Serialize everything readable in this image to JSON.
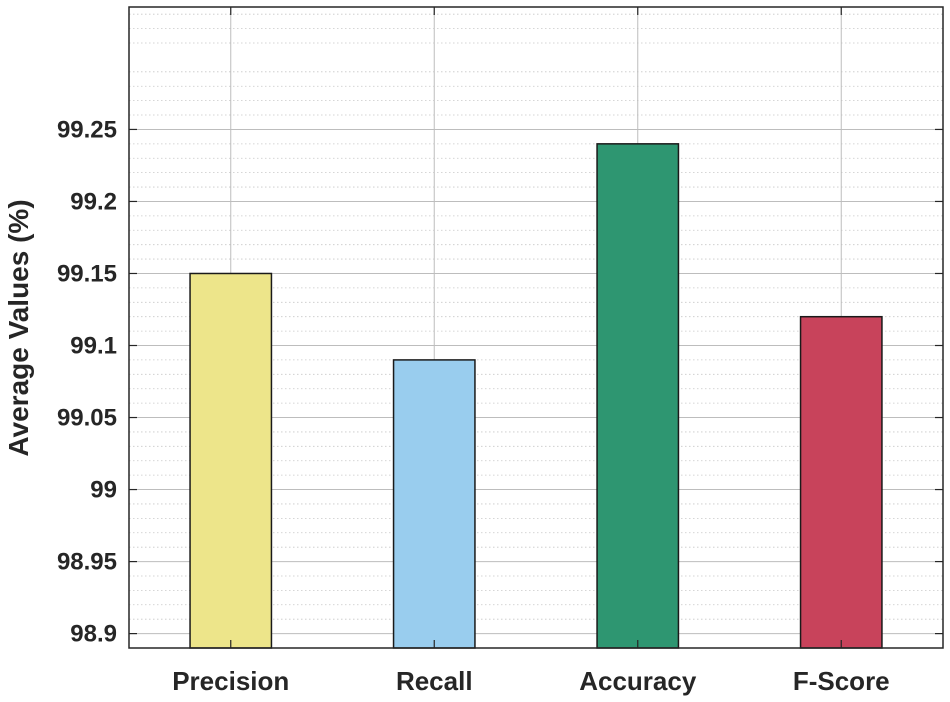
{
  "chart_data": {
    "type": "bar",
    "title": "",
    "xlabel": "",
    "ylabel": "Average Values (%)",
    "categories": [
      "Precision",
      "Recall",
      "Accuracy",
      "F-Score"
    ],
    "values": [
      99.15,
      99.09,
      99.24,
      99.12
    ],
    "colors": [
      "#ede58a",
      "#99cdee",
      "#2e9671",
      "#c8435b"
    ],
    "ylim": [
      98.89,
      99.335
    ],
    "yticks": [
      98.9,
      98.95,
      99.0,
      99.05,
      99.1,
      99.15,
      99.2,
      99.25
    ],
    "ytick_labels": [
      "98.9",
      "98.95",
      "99",
      "99.05",
      "99.1",
      "99.15",
      "99.2",
      "99.25"
    ],
    "grid": true,
    "minor_grid": true
  }
}
